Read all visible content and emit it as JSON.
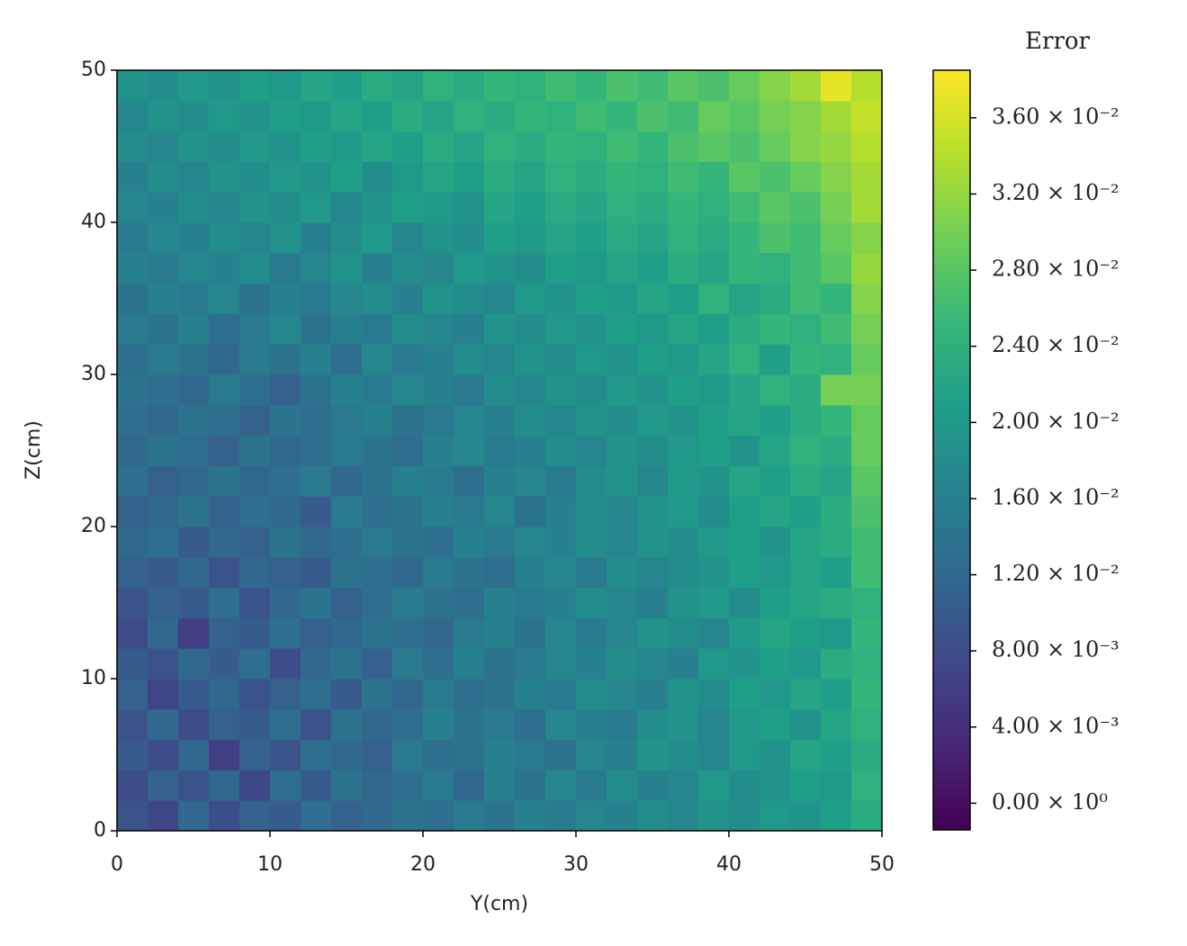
{
  "chart_data": {
    "type": "heatmap",
    "colormap": "viridis",
    "xlabel": "Y(cm)",
    "ylabel": "Z(cm)",
    "colorbar_label": "Error",
    "xlim": [
      0,
      50
    ],
    "ylim": [
      0,
      50
    ],
    "xticks": [
      0,
      10,
      20,
      30,
      40,
      50
    ],
    "yticks": [
      0,
      10,
      20,
      30,
      40,
      50
    ],
    "x": [
      1,
      3,
      5,
      7,
      9,
      11,
      13,
      15,
      17,
      19,
      21,
      23,
      25,
      27,
      29,
      31,
      33,
      35,
      37,
      39,
      41,
      43,
      45,
      47,
      49
    ],
    "y": [
      1,
      3,
      5,
      7,
      9,
      11,
      13,
      15,
      17,
      19,
      21,
      23,
      25,
      27,
      29,
      31,
      33,
      35,
      37,
      39,
      41,
      43,
      45,
      47,
      49
    ],
    "clim": [
      -0.0014,
      0.0385
    ],
    "cticks": [
      {
        "value": 0,
        "label": "0.00 × 10⁰"
      },
      {
        "value": 0.004,
        "label": "4.00 × 10⁻³"
      },
      {
        "value": 0.008,
        "label": "8.00 × 10⁻³"
      },
      {
        "value": 0.012,
        "label": "1.20 × 10⁻²"
      },
      {
        "value": 0.016,
        "label": "1.60 × 10⁻²"
      },
      {
        "value": 0.02,
        "label": "2.00 × 10⁻²"
      },
      {
        "value": 0.024,
        "label": "2.40 × 10⁻²"
      },
      {
        "value": 0.028,
        "label": "2.80 × 10⁻²"
      },
      {
        "value": 0.032,
        "label": "3.20 × 10⁻²"
      },
      {
        "value": 0.036,
        "label": "3.60 × 10⁻²"
      }
    ],
    "z": [
      [
        0.009,
        0.007,
        0.012,
        0.008,
        0.011,
        0.01,
        0.013,
        0.011,
        0.012,
        0.014,
        0.013,
        0.015,
        0.014,
        0.016,
        0.015,
        0.017,
        0.016,
        0.018,
        0.017,
        0.019,
        0.018,
        0.02,
        0.019,
        0.021,
        0.023
      ],
      [
        0.008,
        0.011,
        0.009,
        0.012,
        0.007,
        0.013,
        0.01,
        0.014,
        0.012,
        0.013,
        0.015,
        0.012,
        0.016,
        0.014,
        0.017,
        0.015,
        0.018,
        0.016,
        0.017,
        0.02,
        0.018,
        0.019,
        0.021,
        0.02,
        0.024
      ],
      [
        0.01,
        0.008,
        0.012,
        0.006,
        0.011,
        0.009,
        0.013,
        0.012,
        0.011,
        0.015,
        0.013,
        0.014,
        0.016,
        0.015,
        0.014,
        0.017,
        0.016,
        0.019,
        0.018,
        0.017,
        0.02,
        0.019,
        0.022,
        0.021,
        0.023
      ],
      [
        0.009,
        0.012,
        0.008,
        0.011,
        0.01,
        0.013,
        0.009,
        0.014,
        0.012,
        0.013,
        0.016,
        0.014,
        0.015,
        0.013,
        0.017,
        0.016,
        0.015,
        0.018,
        0.019,
        0.017,
        0.02,
        0.021,
        0.019,
        0.022,
        0.024
      ],
      [
        0.011,
        0.007,
        0.01,
        0.012,
        0.009,
        0.011,
        0.013,
        0.01,
        0.014,
        0.012,
        0.015,
        0.013,
        0.014,
        0.016,
        0.015,
        0.018,
        0.017,
        0.016,
        0.019,
        0.018,
        0.021,
        0.02,
        0.022,
        0.021,
        0.025
      ],
      [
        0.01,
        0.009,
        0.012,
        0.01,
        0.013,
        0.008,
        0.012,
        0.014,
        0.011,
        0.015,
        0.013,
        0.016,
        0.014,
        0.015,
        0.017,
        0.016,
        0.018,
        0.017,
        0.016,
        0.02,
        0.019,
        0.021,
        0.02,
        0.023,
        0.024
      ],
      [
        0.008,
        0.012,
        0.006,
        0.011,
        0.01,
        0.013,
        0.011,
        0.012,
        0.014,
        0.013,
        0.012,
        0.015,
        0.016,
        0.014,
        0.017,
        0.015,
        0.017,
        0.019,
        0.018,
        0.017,
        0.02,
        0.022,
        0.021,
        0.02,
        0.025
      ],
      [
        0.009,
        0.011,
        0.01,
        0.013,
        0.009,
        0.012,
        0.014,
        0.011,
        0.013,
        0.015,
        0.014,
        0.013,
        0.016,
        0.015,
        0.016,
        0.018,
        0.017,
        0.016,
        0.019,
        0.02,
        0.018,
        0.021,
        0.022,
        0.023,
        0.024
      ],
      [
        0.011,
        0.01,
        0.012,
        0.009,
        0.012,
        0.011,
        0.01,
        0.014,
        0.013,
        0.012,
        0.015,
        0.014,
        0.013,
        0.016,
        0.017,
        0.015,
        0.018,
        0.017,
        0.018,
        0.019,
        0.021,
        0.02,
        0.022,
        0.021,
        0.026
      ],
      [
        0.012,
        0.013,
        0.01,
        0.012,
        0.011,
        0.014,
        0.012,
        0.013,
        0.015,
        0.014,
        0.013,
        0.016,
        0.015,
        0.017,
        0.016,
        0.018,
        0.017,
        0.019,
        0.018,
        0.02,
        0.021,
        0.019,
        0.022,
        0.023,
        0.026
      ],
      [
        0.011,
        0.012,
        0.014,
        0.011,
        0.013,
        0.012,
        0.01,
        0.015,
        0.013,
        0.014,
        0.016,
        0.015,
        0.017,
        0.014,
        0.016,
        0.018,
        0.017,
        0.019,
        0.02,
        0.018,
        0.021,
        0.022,
        0.021,
        0.023,
        0.027
      ],
      [
        0.013,
        0.011,
        0.012,
        0.014,
        0.012,
        0.013,
        0.015,
        0.012,
        0.014,
        0.016,
        0.015,
        0.013,
        0.016,
        0.017,
        0.015,
        0.018,
        0.019,
        0.017,
        0.02,
        0.019,
        0.022,
        0.021,
        0.023,
        0.022,
        0.028
      ],
      [
        0.012,
        0.014,
        0.013,
        0.011,
        0.014,
        0.012,
        0.013,
        0.015,
        0.014,
        0.013,
        0.016,
        0.017,
        0.015,
        0.016,
        0.018,
        0.017,
        0.019,
        0.018,
        0.02,
        0.021,
        0.019,
        0.022,
        0.024,
        0.023,
        0.029
      ],
      [
        0.013,
        0.012,
        0.014,
        0.013,
        0.011,
        0.014,
        0.013,
        0.015,
        0.016,
        0.014,
        0.015,
        0.017,
        0.016,
        0.018,
        0.017,
        0.019,
        0.018,
        0.02,
        0.019,
        0.021,
        0.022,
        0.021,
        0.023,
        0.025,
        0.029
      ],
      [
        0.014,
        0.013,
        0.012,
        0.015,
        0.013,
        0.011,
        0.014,
        0.016,
        0.015,
        0.017,
        0.016,
        0.015,
        0.018,
        0.017,
        0.019,
        0.018,
        0.02,
        0.019,
        0.021,
        0.02,
        0.022,
        0.024,
        0.023,
        0.03,
        0.03
      ],
      [
        0.013,
        0.015,
        0.014,
        0.012,
        0.015,
        0.014,
        0.016,
        0.013,
        0.017,
        0.015,
        0.016,
        0.018,
        0.017,
        0.019,
        0.018,
        0.02,
        0.019,
        0.021,
        0.02,
        0.022,
        0.024,
        0.021,
        0.025,
        0.024,
        0.029
      ],
      [
        0.015,
        0.014,
        0.016,
        0.013,
        0.015,
        0.017,
        0.014,
        0.016,
        0.015,
        0.018,
        0.017,
        0.016,
        0.019,
        0.018,
        0.02,
        0.019,
        0.021,
        0.02,
        0.022,
        0.021,
        0.023,
        0.025,
        0.024,
        0.026,
        0.03
      ],
      [
        0.014,
        0.016,
        0.015,
        0.017,
        0.014,
        0.016,
        0.015,
        0.017,
        0.018,
        0.016,
        0.019,
        0.018,
        0.017,
        0.02,
        0.019,
        0.021,
        0.02,
        0.022,
        0.021,
        0.024,
        0.022,
        0.023,
        0.026,
        0.025,
        0.031
      ],
      [
        0.016,
        0.015,
        0.017,
        0.016,
        0.018,
        0.015,
        0.017,
        0.019,
        0.016,
        0.018,
        0.017,
        0.02,
        0.019,
        0.018,
        0.021,
        0.02,
        0.022,
        0.021,
        0.023,
        0.022,
        0.025,
        0.024,
        0.026,
        0.028,
        0.032
      ],
      [
        0.015,
        0.017,
        0.016,
        0.018,
        0.017,
        0.019,
        0.016,
        0.018,
        0.02,
        0.017,
        0.019,
        0.018,
        0.021,
        0.02,
        0.022,
        0.021,
        0.023,
        0.022,
        0.024,
        0.023,
        0.025,
        0.027,
        0.026,
        0.029,
        0.031
      ],
      [
        0.017,
        0.016,
        0.018,
        0.017,
        0.019,
        0.018,
        0.02,
        0.017,
        0.019,
        0.021,
        0.02,
        0.019,
        0.022,
        0.021,
        0.023,
        0.022,
        0.024,
        0.023,
        0.025,
        0.024,
        0.026,
        0.028,
        0.027,
        0.03,
        0.033
      ],
      [
        0.016,
        0.018,
        0.017,
        0.019,
        0.018,
        0.02,
        0.019,
        0.021,
        0.018,
        0.02,
        0.022,
        0.021,
        0.023,
        0.022,
        0.024,
        0.023,
        0.025,
        0.024,
        0.026,
        0.025,
        0.028,
        0.027,
        0.029,
        0.031,
        0.033
      ],
      [
        0.018,
        0.017,
        0.019,
        0.018,
        0.02,
        0.019,
        0.021,
        0.02,
        0.022,
        0.021,
        0.023,
        0.022,
        0.024,
        0.023,
        0.025,
        0.024,
        0.026,
        0.025,
        0.027,
        0.028,
        0.027,
        0.029,
        0.031,
        0.032,
        0.034
      ],
      [
        0.017,
        0.019,
        0.018,
        0.02,
        0.019,
        0.021,
        0.02,
        0.022,
        0.021,
        0.023,
        0.022,
        0.024,
        0.023,
        0.025,
        0.024,
        0.026,
        0.025,
        0.027,
        0.026,
        0.029,
        0.028,
        0.03,
        0.031,
        0.033,
        0.035
      ],
      [
        0.019,
        0.018,
        0.02,
        0.019,
        0.021,
        0.02,
        0.022,
        0.021,
        0.023,
        0.022,
        0.024,
        0.023,
        0.025,
        0.024,
        0.026,
        0.025,
        0.027,
        0.026,
        0.028,
        0.027,
        0.029,
        0.031,
        0.033,
        0.037,
        0.034
      ]
    ]
  }
}
